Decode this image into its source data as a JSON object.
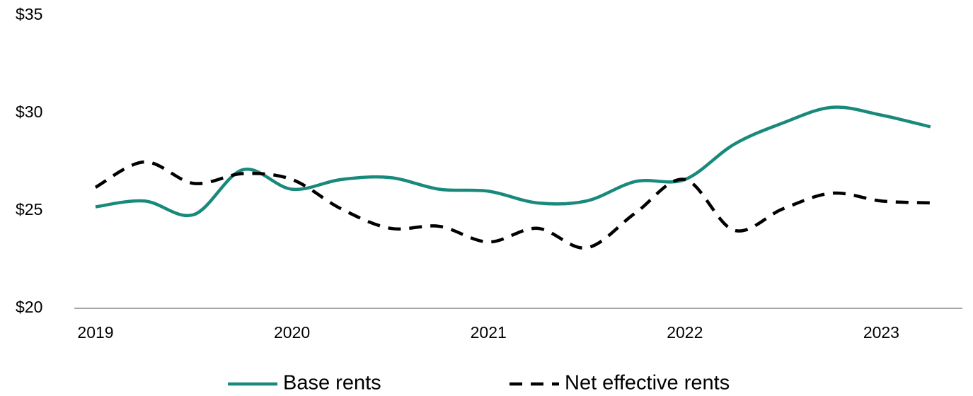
{
  "chart_data": {
    "type": "line",
    "categories": [
      "2019",
      null,
      null,
      null,
      "2020",
      null,
      null,
      null,
      "2021",
      null,
      null,
      null,
      "2022",
      null,
      null,
      null,
      "2023",
      null
    ],
    "series": [
      {
        "name": "Base rents",
        "color": "#18897a",
        "dashed": false,
        "values": [
          25.2,
          25.5,
          24.8,
          27.1,
          26.1,
          26.6,
          26.7,
          26.1,
          26.0,
          25.4,
          25.5,
          26.5,
          26.6,
          28.4,
          29.5,
          30.3,
          29.9,
          29.3
        ]
      },
      {
        "name": "Net effective rents",
        "color": "#000000",
        "dashed": true,
        "values": [
          26.2,
          27.5,
          26.4,
          26.9,
          26.6,
          25.1,
          24.1,
          24.2,
          23.4,
          24.1,
          23.1,
          24.9,
          26.6,
          24.0,
          25.1,
          25.9,
          25.5,
          25.4
        ]
      }
    ],
    "ylim": [
      20,
      35
    ],
    "yticks": [
      {
        "value": 20,
        "label": "$20"
      },
      {
        "value": 25,
        "label": "$25"
      },
      {
        "value": 30,
        "label": "$30"
      },
      {
        "value": 35,
        "label": "$35"
      }
    ],
    "grid": false
  }
}
